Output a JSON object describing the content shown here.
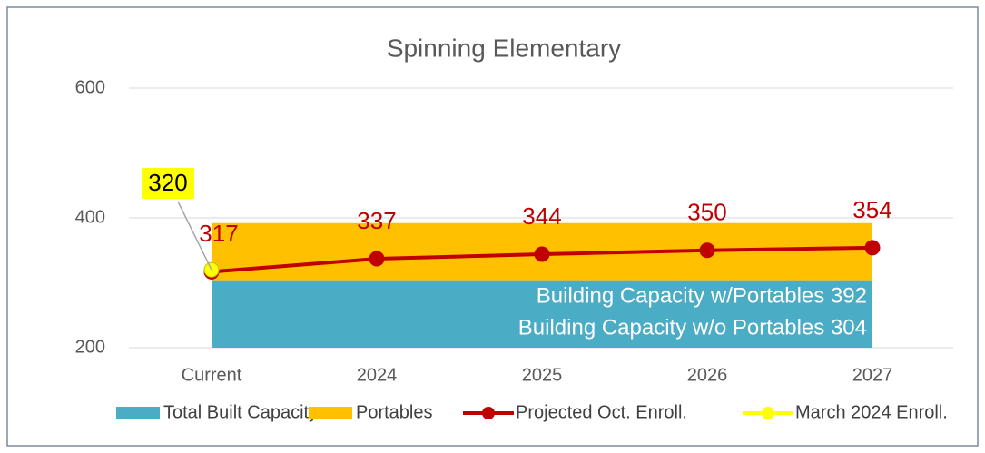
{
  "chart_data": {
    "type": "line",
    "title": "Spinning Elementary",
    "categories": [
      "Current",
      "2024",
      "2025",
      "2026",
      "2027"
    ],
    "ylim": [
      200,
      600
    ],
    "yticks": [
      200,
      400,
      600
    ],
    "grid": true,
    "legend": "bottom",
    "series": [
      {
        "name": "Total Built Capacity",
        "type": "area",
        "stacked": true,
        "color": "#4BACC6",
        "values": [
          304,
          304,
          304,
          304,
          304
        ]
      },
      {
        "name": "Portables",
        "type": "area",
        "stacked": true,
        "color": "#FFC000",
        "values": [
          88,
          88,
          88,
          88,
          88
        ]
      },
      {
        "name": "Projected Oct. Enroll.",
        "type": "line",
        "color": "#C00000",
        "values": [
          317,
          337,
          344,
          350,
          354
        ]
      },
      {
        "name": "March 2024 Enroll.",
        "type": "line",
        "color": "#FFFF00",
        "values": [
          320,
          null,
          null,
          null,
          null
        ]
      }
    ],
    "annotations": [
      "Building Capacity w/Portables 392",
      "Building Capacity w/o Portables 304"
    ]
  }
}
